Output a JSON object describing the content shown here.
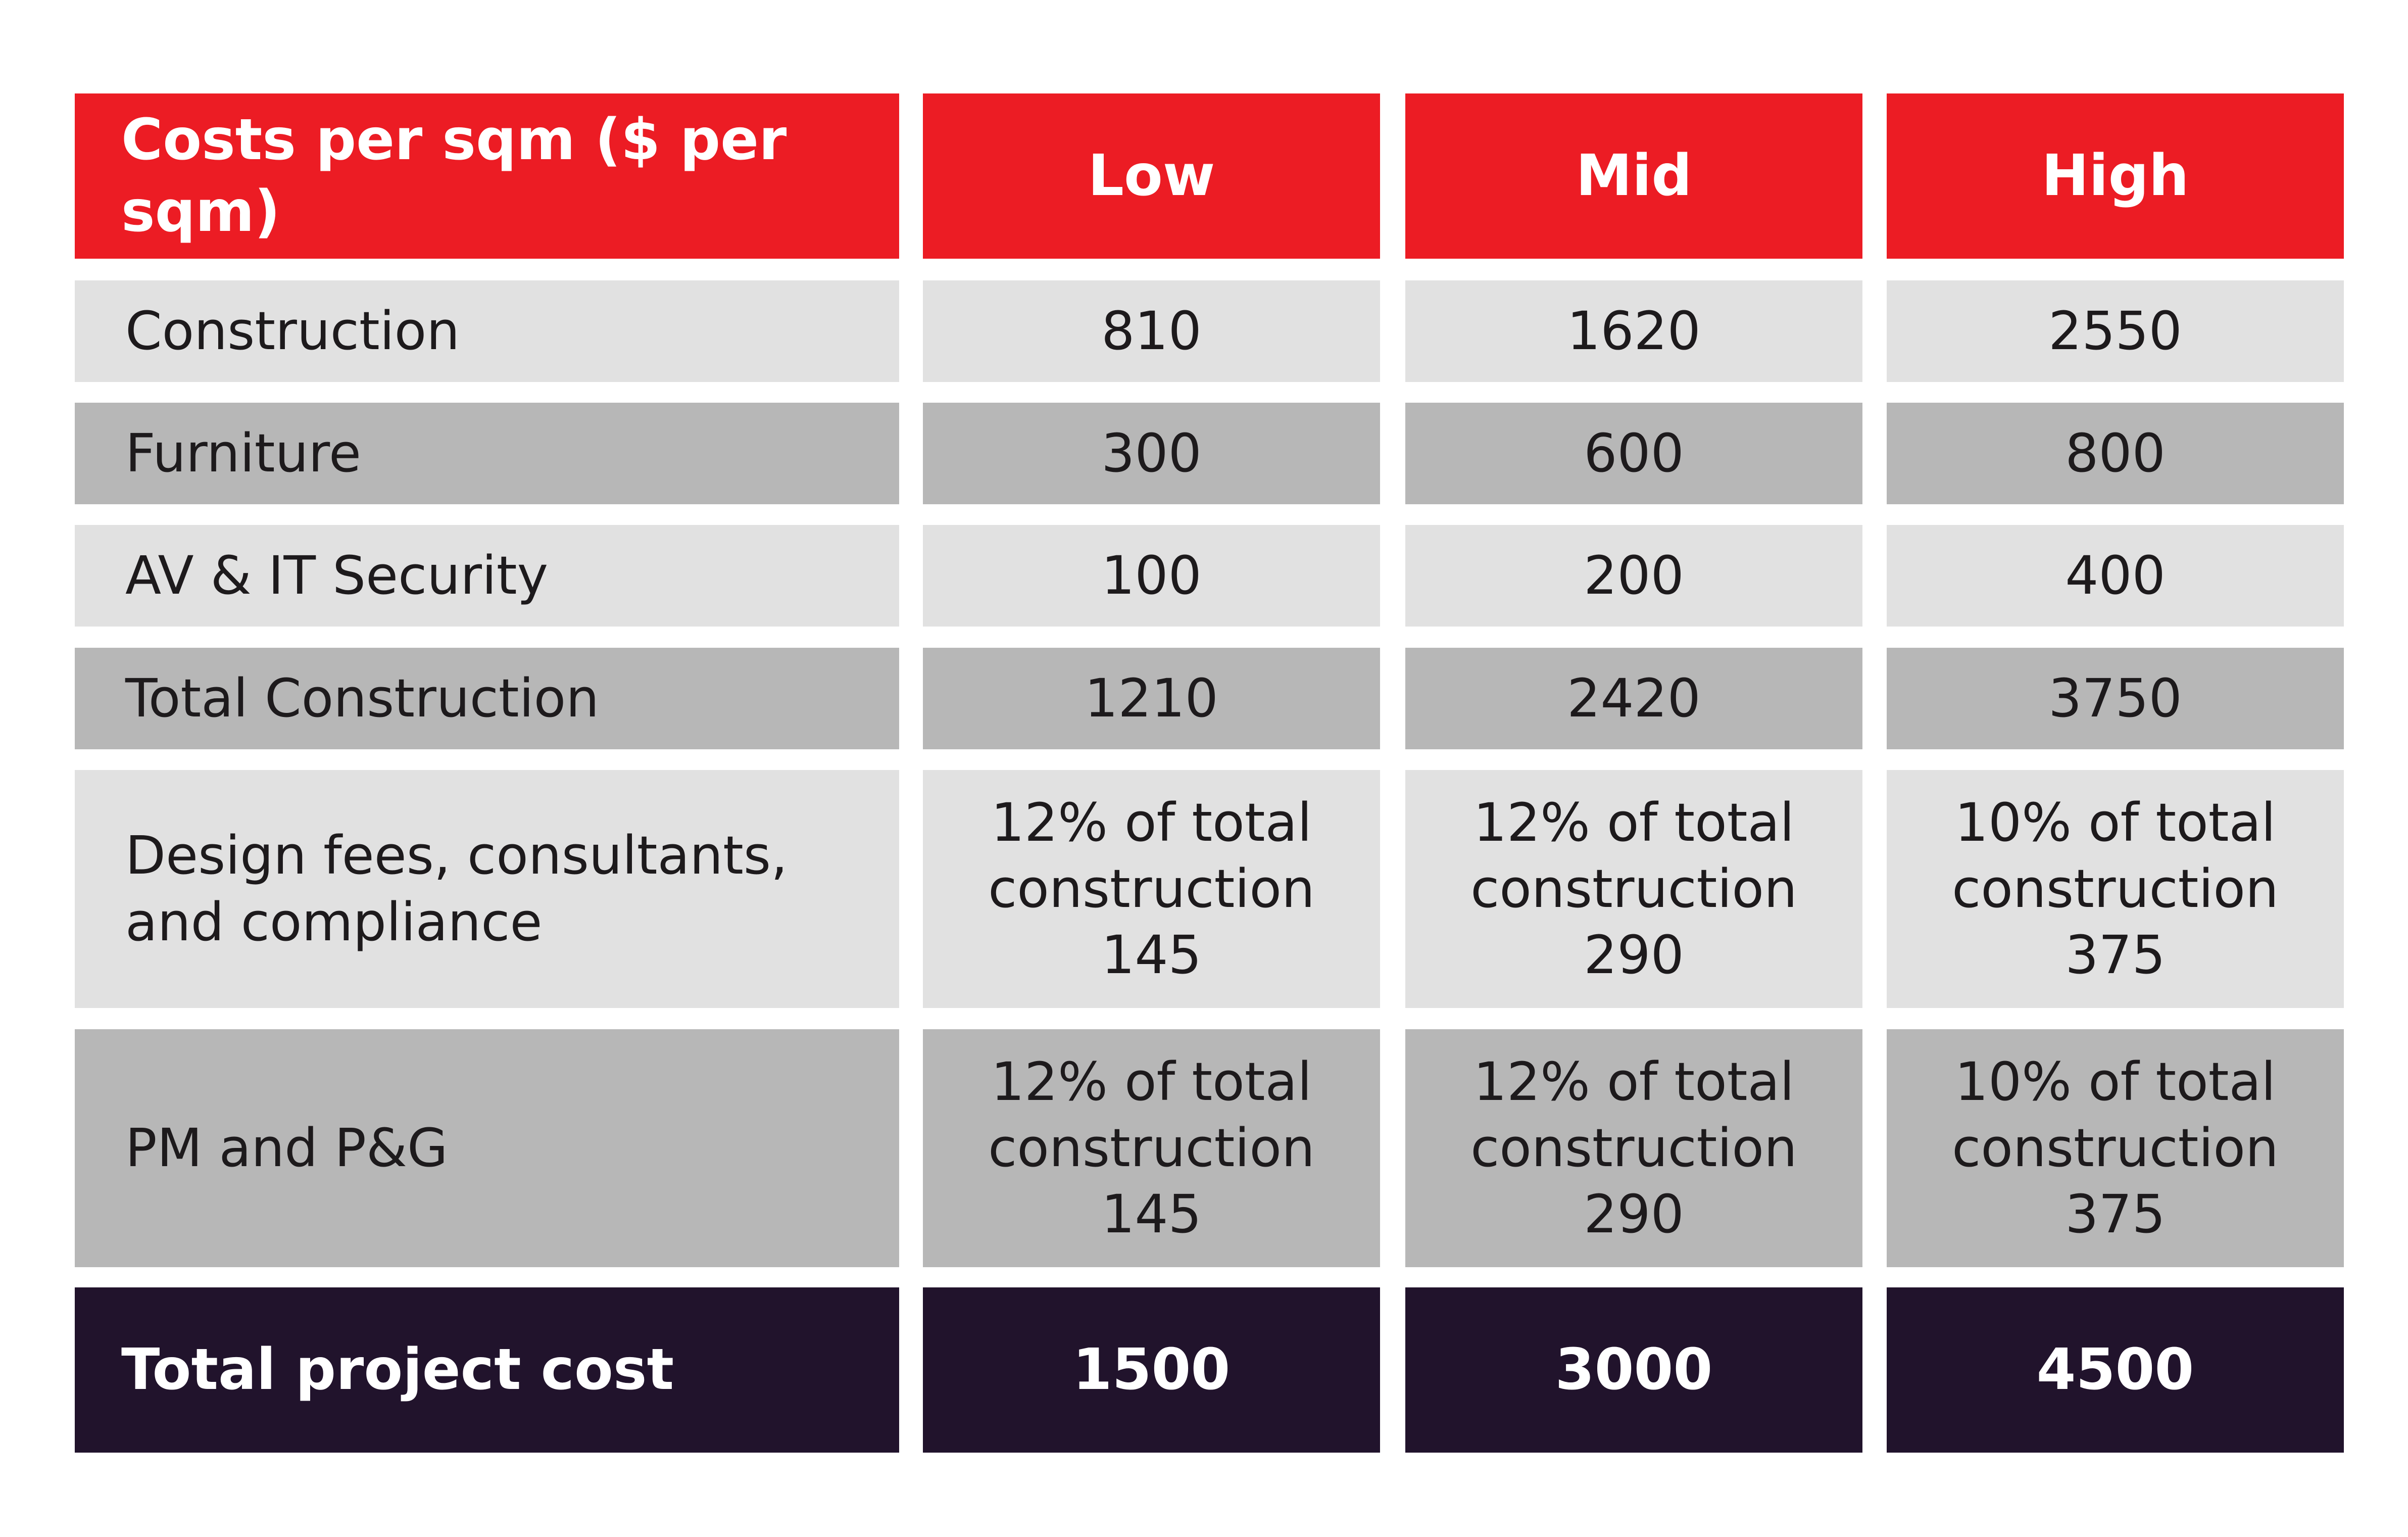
{
  "chart_data": {
    "type": "table",
    "colors": {
      "header_bg": "#ec1c24",
      "row_light": "#e1e1e1",
      "row_dark": "#b7b7b7",
      "total_bg": "#21132c",
      "header_text": "#ffffff",
      "body_text": "#1d1a1c"
    },
    "columns": [
      "Costs per sqm ($ per sqm)",
      "Low",
      "Mid",
      "High"
    ],
    "rows": [
      {
        "label": [
          "Construction"
        ],
        "values": [
          [
            "810"
          ],
          [
            "1620"
          ],
          [
            "2550"
          ]
        ]
      },
      {
        "label": [
          "Furniture"
        ],
        "values": [
          [
            "300"
          ],
          [
            "600"
          ],
          [
            "800"
          ]
        ]
      },
      {
        "label": [
          "AV & IT Security"
        ],
        "values": [
          [
            "100"
          ],
          [
            "200"
          ],
          [
            "400"
          ]
        ]
      },
      {
        "label": [
          "Total Construction"
        ],
        "values": [
          [
            "1210"
          ],
          [
            "2420"
          ],
          [
            "3750"
          ]
        ]
      },
      {
        "label": [
          "Design fees, consultants,",
          "and compliance"
        ],
        "values": [
          [
            "12% of total",
            "construction",
            "145"
          ],
          [
            "12% of total",
            "construction",
            "290"
          ],
          [
            "10% of total",
            "construction",
            "375"
          ]
        ]
      },
      {
        "label": [
          "PM and P&G"
        ],
        "values": [
          [
            "12% of total",
            "construction",
            "145"
          ],
          [
            "12% of total",
            "construction",
            "290"
          ],
          [
            "10% of total",
            "construction",
            "375"
          ]
        ]
      }
    ],
    "total_row": {
      "label": [
        "Total project cost"
      ],
      "values": [
        [
          "1500"
        ],
        [
          "3000"
        ],
        [
          "4500"
        ]
      ]
    }
  }
}
